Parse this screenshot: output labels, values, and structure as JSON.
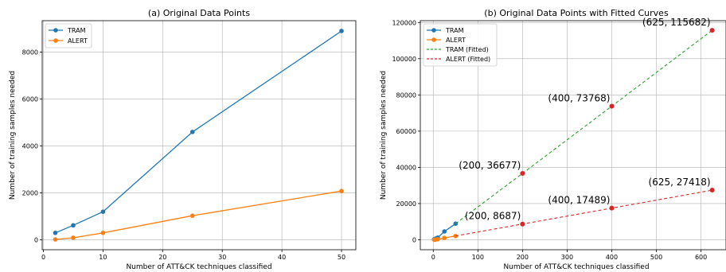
{
  "chart_data": [
    {
      "type": "line",
      "title": "(a) Original Data Points",
      "xlabel": "Number of ATT&CK techniques classified",
      "ylabel": "Number of training samples needed",
      "xlim": [
        -0.2,
        52.4
      ],
      "ylim": [
        -420,
        9340
      ],
      "xticks": [
        0,
        10,
        20,
        30,
        40,
        50
      ],
      "yticks": [
        0,
        2000,
        4000,
        6000,
        8000
      ],
      "grid": true,
      "legend_position": "top-left",
      "series": [
        {
          "name": "TRAM",
          "color": "#1f77b4",
          "x": [
            2,
            5,
            10,
            25,
            50
          ],
          "y": [
            300,
            620,
            1200,
            4600,
            8900
          ]
        },
        {
          "name": "ALERT",
          "color": "#ff7f0e",
          "x": [
            2,
            5,
            10,
            25,
            50
          ],
          "y": [
            20,
            90,
            300,
            1030,
            2080
          ]
        }
      ]
    },
    {
      "type": "line",
      "title": "(b) Original Data Points with Fitted Curves",
      "xlabel": "Number of ATT&CK techniques classified",
      "ylabel": "Number of training samples needed",
      "xlim": [
        -29,
        656
      ],
      "ylim": [
        -5500,
        121000
      ],
      "xticks": [
        0,
        100,
        200,
        300,
        400,
        500,
        600
      ],
      "yticks": [
        0,
        20000,
        40000,
        60000,
        80000,
        100000,
        120000
      ],
      "grid": true,
      "legend_position": "top-left",
      "series": [
        {
          "name": "TRAM",
          "color": "#1f77b4",
          "style": "solid",
          "x": [
            2,
            5,
            10,
            25,
            50
          ],
          "y": [
            300,
            620,
            1200,
            4600,
            8900
          ]
        },
        {
          "name": "ALERT",
          "color": "#ff7f0e",
          "style": "solid",
          "x": [
            2,
            5,
            10,
            25,
            50
          ],
          "y": [
            20,
            90,
            300,
            1030,
            2080
          ]
        },
        {
          "name": "TRAM (Fitted)",
          "color": "#2ca02c",
          "style": "dashed",
          "x": [
            50,
            200,
            400,
            625
          ],
          "y": [
            8900,
            36677,
            73768,
            115682
          ]
        },
        {
          "name": "ALERT (Fitted)",
          "color": "#d62728",
          "style": "dashed",
          "x": [
            50,
            200,
            400,
            625
          ],
          "y": [
            2080,
            8687,
            17489,
            27418
          ]
        }
      ],
      "points": [
        {
          "x": 200,
          "y": 36677,
          "label": "(200, 36677)"
        },
        {
          "x": 400,
          "y": 73768,
          "label": "(400, 73768)"
        },
        {
          "x": 625,
          "y": 115682,
          "label": "(625, 115682)"
        },
        {
          "x": 200,
          "y": 8687,
          "label": "(200, 8687)"
        },
        {
          "x": 400,
          "y": 17489,
          "label": "(400, 17489)"
        },
        {
          "x": 625,
          "y": 27418,
          "label": "(625, 27418)"
        }
      ],
      "point_color": "#d62728"
    }
  ]
}
